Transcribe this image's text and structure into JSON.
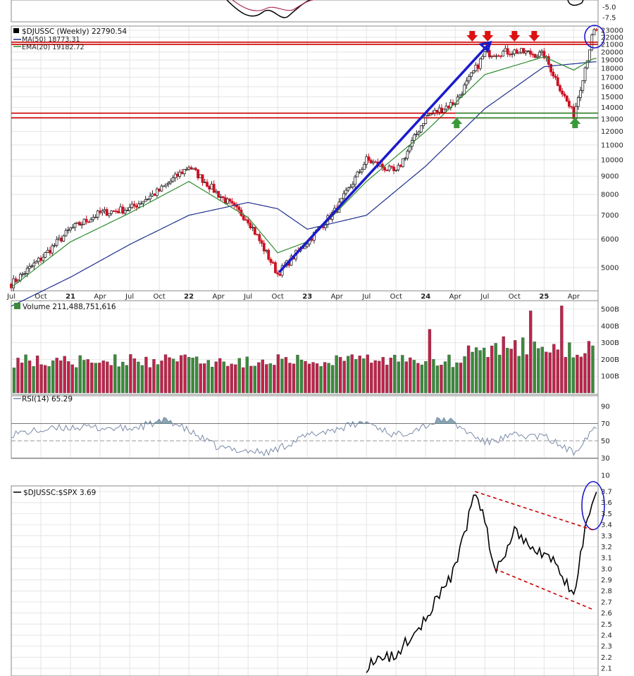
{
  "chart_data": [
    {
      "type": "line",
      "panel": "top-indicator",
      "y_ticks": [
        "-5.0",
        "-7.5"
      ]
    },
    {
      "type": "candlestick",
      "panel": "price",
      "legend": {
        "title": "$DJUSSC (Weekly) 22790.54",
        "ma": "MA(50) 18773.31",
        "ema": "EMA(20) 19182.72"
      },
      "scale": "log",
      "y_ticks": [
        "23000",
        "22000",
        "21000",
        "20000",
        "19000",
        "18000",
        "17000",
        "16000",
        "15000",
        "14000",
        "13000",
        "12000",
        "11000",
        "10000",
        "9000",
        "8000",
        "7000",
        "6000",
        "5000"
      ],
      "x_ticks": [
        "Jul",
        "Oct",
        "21",
        "Apr",
        "Jul",
        "Oct",
        "22",
        "Apr",
        "Jul",
        "Oct",
        "23",
        "Apr",
        "Jul",
        "Oct",
        "24",
        "Apr",
        "Jul",
        "Oct",
        "25",
        "Apr"
      ],
      "series": [
        {
          "name": "$DJUSSC",
          "color": "#000000",
          "x": [
            "2020-07",
            "2020-10",
            "2021-01",
            "2021-04",
            "2021-07",
            "2021-10",
            "2022-01",
            "2022-04",
            "2022-07",
            "2022-10",
            "2023-01",
            "2023-04",
            "2023-07",
            "2023-10",
            "2024-01",
            "2024-04",
            "2024-07",
            "2024-10",
            "2025-01",
            "2025-04",
            "2025-06"
          ],
          "values": [
            4500,
            5300,
            6400,
            7100,
            7300,
            8200,
            9600,
            8000,
            6800,
            4800,
            5900,
            7300,
            10000,
            9200,
            13200,
            14500,
            19800,
            20100,
            19600,
            13300,
            22790
          ]
        },
        {
          "name": "MA(50)",
          "color": "#1f2f8c",
          "x": [
            "2020-07",
            "2021-01",
            "2021-07",
            "2022-01",
            "2022-07",
            "2022-10",
            "2023-01",
            "2023-07",
            "2024-01",
            "2024-07",
            "2025-01",
            "2025-06"
          ],
          "values": [
            3900,
            4700,
            5800,
            7000,
            7600,
            7300,
            6400,
            7000,
            9600,
            13900,
            18200,
            18773
          ]
        },
        {
          "name": "EMA(20)",
          "color": "#2e8b2e",
          "x": [
            "2020-07",
            "2021-01",
            "2021-07",
            "2022-01",
            "2022-07",
            "2022-10",
            "2023-01",
            "2023-07",
            "2024-01",
            "2024-07",
            "2025-01",
            "2025-04",
            "2025-06"
          ],
          "values": [
            4400,
            5900,
            7100,
            8700,
            6900,
            5500,
            5900,
            8700,
            12000,
            17300,
            19400,
            17800,
            19182
          ]
        }
      ],
      "horizontal_lines": [
        {
          "value": 21000,
          "color": "#cc0000"
        },
        {
          "value": 21300,
          "color": "#cc0000"
        },
        {
          "value": 13500,
          "color": "#cc0000"
        },
        {
          "value": 13100,
          "color": "#cc0000"
        },
        {
          "value": 13500,
          "color": "#2e8b2e"
        },
        {
          "value": 13100,
          "color": "#2e8b2e"
        }
      ]
    },
    {
      "type": "bar",
      "panel": "volume",
      "legend": "Volume 211,488,751,616",
      "y_ticks": [
        "500B",
        "400B",
        "300B",
        "200B",
        "100B"
      ],
      "colors": {
        "up": "#3a8a3a",
        "down": "#c0234a"
      }
    },
    {
      "type": "line",
      "panel": "rsi",
      "legend": "RSI(14) 65.29",
      "y_ticks": [
        "90",
        "70",
        "50",
        "30",
        "10"
      ],
      "reference_lines": [
        70,
        50,
        30
      ],
      "series": [
        {
          "name": "RSI(14)",
          "color": "#7a8aa8",
          "x": [
            "2020-07",
            "2021-01",
            "2021-07",
            "2021-11",
            "2022-04",
            "2022-09",
            "2023-01",
            "2023-07",
            "2023-10",
            "2024-03",
            "2024-07",
            "2024-10",
            "2025-01",
            "2025-04",
            "2025-06"
          ],
          "values": [
            58,
            66,
            64,
            74,
            42,
            36,
            56,
            72,
            56,
            76,
            48,
            56,
            55,
            36,
            65.29
          ]
        }
      ]
    },
    {
      "type": "line",
      "panel": "ratio",
      "legend": "$DJUSSC:$SPX 3.69",
      "y_ticks": [
        "3.7",
        "3.6",
        "3.5",
        "3.4",
        "3.3",
        "3.2",
        "3.1",
        "3.0",
        "2.9",
        "2.8",
        "2.7",
        "2.6",
        "2.5",
        "2.4",
        "2.3",
        "2.2",
        "2.1"
      ],
      "series": [
        {
          "name": "$DJUSSC:$SPX",
          "color": "#000000",
          "x": [
            "2023-07",
            "2023-10",
            "2024-01",
            "2024-04",
            "2024-06",
            "2024-07",
            "2024-08",
            "2024-10",
            "2024-12",
            "2025-02",
            "2025-04",
            "2025-05",
            "2025-06"
          ],
          "values": [
            2.12,
            2.22,
            2.55,
            3.0,
            3.68,
            3.45,
            2.95,
            3.35,
            3.2,
            3.05,
            2.75,
            3.3,
            3.69
          ]
        }
      ],
      "trend_lines": [
        {
          "from": {
            "x": "2024-06",
            "y": 3.7
          },
          "to": {
            "x": "2025-06",
            "y": 3.35
          },
          "color": "#cc0000",
          "style": "dashed"
        },
        {
          "from": {
            "x": "2024-08",
            "y": 3.0
          },
          "to": {
            "x": "2025-06",
            "y": 2.63
          },
          "color": "#cc0000",
          "style": "dashed"
        }
      ]
    }
  ]
}
